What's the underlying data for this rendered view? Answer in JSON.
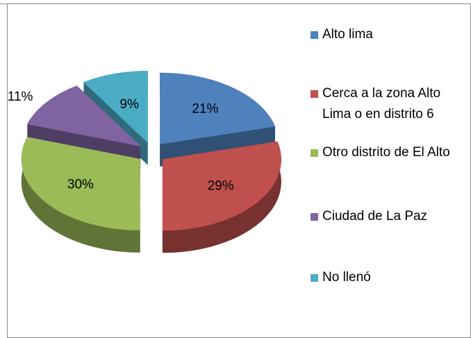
{
  "chart_data": {
    "type": "pie",
    "categories": [
      "Alto lima",
      "Cerca a la zona Alto Lima o en distrito 6",
      "Otro distrito de El Alto",
      "Ciudad de La Paz",
      "No llenó"
    ],
    "values": [
      21,
      29,
      30,
      11,
      9
    ],
    "value_labels": [
      "21%",
      "29%",
      "30%",
      "11%",
      "9%"
    ],
    "colors": [
      "#4f81bd",
      "#c0504d",
      "#9bbb59",
      "#8064a2",
      "#4bacc6"
    ],
    "legend": "right"
  }
}
